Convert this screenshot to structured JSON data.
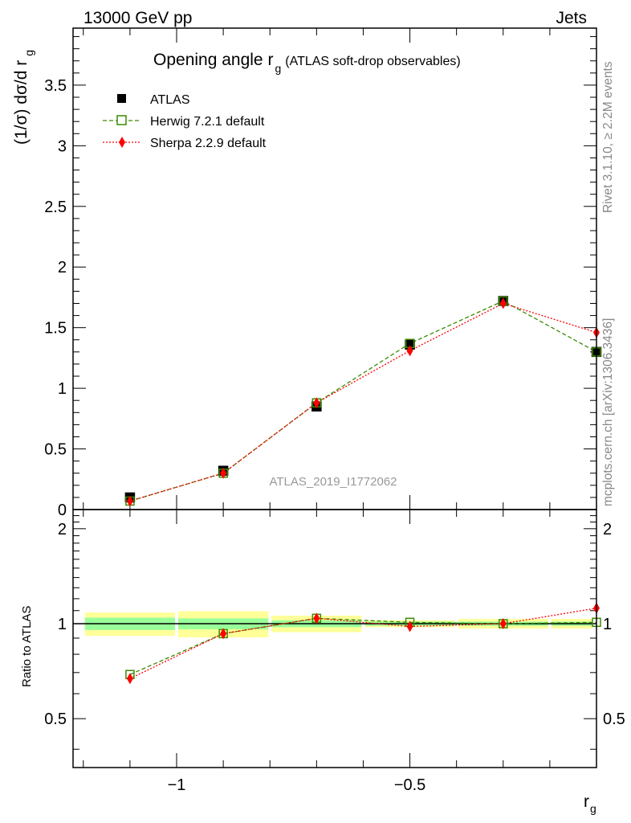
{
  "header": {
    "left": "13000 GeV pp",
    "right": "Jets"
  },
  "title": {
    "main": "Opening angle r",
    "sub": "g",
    "extra": "(ATLAS soft-drop observables)"
  },
  "side_texts": {
    "rivet": "Rivet 3.1.10, ≥ 2.2M events",
    "mcplots": "mcplots.cern.ch [arXiv:1306.3436]"
  },
  "watermark": "ATLAS_2019_I1772062",
  "colors": {
    "atlas": "#000000",
    "herwig": "#3a8a00",
    "sherpa": "#ff0000",
    "band_inner": "#99ff99",
    "band_outer": "#ffff99"
  },
  "chart_data": [
    {
      "type": "line",
      "panel": "main",
      "xlabel": "r",
      "xlabel_sub": "g",
      "ylabel": "(1/σ) dσ/d r",
      "ylabel_sub": "g",
      "xlim": [
        -1.222,
        -0.1
      ],
      "ylim": [
        0,
        3.97
      ],
      "x_ticks": [
        -1,
        -0.5
      ],
      "x_tick_labels": [
        "−1",
        "−0.5"
      ],
      "y_ticks": [
        0,
        0.5,
        1,
        1.5,
        2,
        2.5,
        3,
        3.5
      ],
      "y_tick_labels": [
        "0",
        "0.5",
        "1",
        "1.5",
        "2",
        "2.5",
        "3",
        "3.5"
      ],
      "x": [
        -1.1,
        -0.9,
        -0.7,
        -0.5,
        -0.3,
        -0.1
      ],
      "series": [
        {
          "name": "ATLAS",
          "style": "square-filled",
          "values": [
            0.1,
            0.32,
            0.85,
            1.36,
            1.72,
            1.3
          ]
        },
        {
          "name": "Herwig 7.2.1 default",
          "style": "square-open-dashed",
          "values": [
            0.07,
            0.3,
            0.88,
            1.37,
            1.72,
            1.3
          ]
        },
        {
          "name": "Sherpa 2.2.9 default",
          "style": "diamond-dotted",
          "values": [
            0.07,
            0.3,
            0.88,
            1.31,
            1.7,
            1.46
          ]
        }
      ],
      "legend": "top-left"
    },
    {
      "type": "line",
      "panel": "ratio",
      "ylabel": "Ratio to ATLAS",
      "xlim": [
        -1.222,
        -0.1
      ],
      "ylim": [
        0.35,
        2.3
      ],
      "y_ticks": [
        0.5,
        1,
        2
      ],
      "y_tick_labels": [
        "0.5",
        "1",
        "2"
      ],
      "x": [
        -1.1,
        -0.9,
        -0.7,
        -0.5,
        -0.3,
        -0.1
      ],
      "bin_edges": [
        -1.2,
        -1.0,
        -0.8,
        -0.6,
        -0.4,
        -0.2,
        -0.0
      ],
      "band_inner": {
        "low": [
          0.955,
          0.96,
          0.975,
          0.985,
          0.985,
          0.985
        ],
        "high": [
          1.045,
          1.04,
          1.025,
          1.015,
          1.015,
          1.015
        ]
      },
      "band_outer": {
        "low": [
          0.915,
          0.905,
          0.94,
          0.975,
          0.965,
          0.965
        ],
        "high": [
          1.085,
          1.095,
          1.06,
          1.025,
          1.035,
          1.035
        ]
      },
      "series": [
        {
          "name": "Herwig 7.2.1 default",
          "values": [
            0.69,
            0.93,
            1.04,
            1.01,
            1.0,
            1.01
          ]
        },
        {
          "name": "Sherpa 2.2.9 default",
          "values": [
            0.67,
            0.93,
            1.04,
            0.98,
            1.0,
            1.12
          ]
        }
      ]
    }
  ]
}
